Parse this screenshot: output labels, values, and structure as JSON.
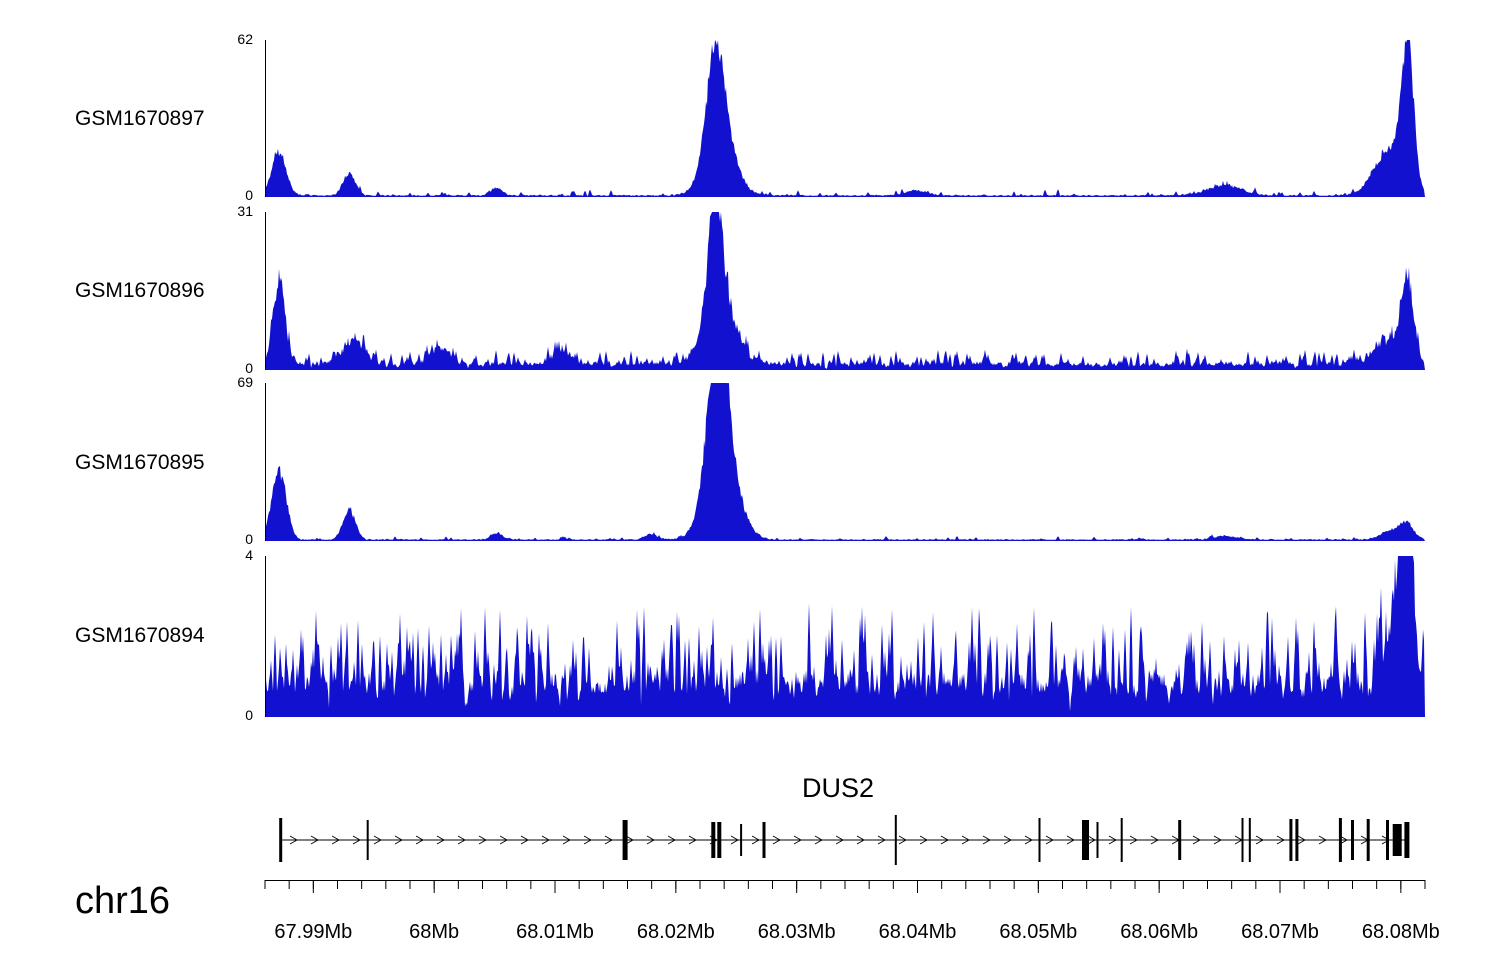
{
  "figure": {
    "background": "#ffffff",
    "signal_color": "#1111cf",
    "axis_color": "#000000"
  },
  "chart_data": [
    {
      "type": "area",
      "name": "GSM1670897",
      "ymax_label": "62",
      "ymin_label": "0",
      "ylim": [
        0,
        62
      ],
      "x_mb_range": [
        67.986,
        68.082
      ],
      "noise": {
        "base": 0.9,
        "spike": 2.2,
        "spike_prob": 0.12,
        "seed": 11
      },
      "peaks_mb": [
        {
          "mb": 67.9872,
          "value": 19,
          "sigma_mb": 0.0006
        },
        {
          "mb": 67.993,
          "value": 10,
          "sigma_mb": 0.0005
        },
        {
          "mb": 68.0052,
          "value": 3.5,
          "sigma_mb": 0.0005
        },
        {
          "mb": 68.0233,
          "value": 40,
          "sigma_mb": 0.0007
        },
        {
          "mb": 68.0237,
          "value": 28,
          "sigma_mb": 0.0012
        },
        {
          "mb": 68.04,
          "value": 2.5,
          "sigma_mb": 0.0008
        },
        {
          "mb": 68.0655,
          "value": 4.5,
          "sigma_mb": 0.0015
        },
        {
          "mb": 68.079,
          "value": 20,
          "sigma_mb": 0.0012
        },
        {
          "mb": 68.0806,
          "value": 62,
          "sigma_mb": 0.0005
        }
      ]
    },
    {
      "type": "area",
      "name": "GSM1670896",
      "ymax_label": "31",
      "ymin_label": "0",
      "ylim": [
        0,
        31
      ],
      "x_mb_range": [
        67.986,
        68.082
      ],
      "noise": {
        "base": 1.6,
        "spike": 2.8,
        "spike_prob": 0.35,
        "seed": 22
      },
      "peaks_mb": [
        {
          "mb": 67.9872,
          "value": 19,
          "sigma_mb": 0.0005
        },
        {
          "mb": 67.9934,
          "value": 5.5,
          "sigma_mb": 0.0009
        },
        {
          "mb": 68.0005,
          "value": 4,
          "sigma_mb": 0.0008
        },
        {
          "mb": 68.0105,
          "value": 3,
          "sigma_mb": 0.0008
        },
        {
          "mb": 68.0233,
          "value": 25,
          "sigma_mb": 0.0006
        },
        {
          "mb": 68.0237,
          "value": 13,
          "sigma_mb": 0.0013
        },
        {
          "mb": 68.079,
          "value": 6,
          "sigma_mb": 0.0012
        },
        {
          "mb": 68.0806,
          "value": 17,
          "sigma_mb": 0.0005
        }
      ]
    },
    {
      "type": "area",
      "name": "GSM1670895",
      "ymax_label": "69",
      "ymin_label": "0",
      "ylim": [
        0,
        69
      ],
      "x_mb_range": [
        67.986,
        68.082
      ],
      "noise": {
        "base": 0.9,
        "spike": 1.4,
        "spike_prob": 0.1,
        "seed": 33
      },
      "peaks_mb": [
        {
          "mb": 67.9872,
          "value": 33,
          "sigma_mb": 0.0006
        },
        {
          "mb": 67.993,
          "value": 15,
          "sigma_mb": 0.0005
        },
        {
          "mb": 68.0052,
          "value": 3.5,
          "sigma_mb": 0.0005
        },
        {
          "mb": 68.018,
          "value": 2.5,
          "sigma_mb": 0.0006
        },
        {
          "mb": 68.0235,
          "value": 69,
          "sigma_mb": 0.0008
        },
        {
          "mb": 68.0239,
          "value": 38,
          "sigma_mb": 0.0013
        },
        {
          "mb": 68.0655,
          "value": 2,
          "sigma_mb": 0.001
        },
        {
          "mb": 68.0795,
          "value": 5,
          "sigma_mb": 0.001
        },
        {
          "mb": 68.0806,
          "value": 6,
          "sigma_mb": 0.0005
        }
      ]
    },
    {
      "type": "area",
      "name": "GSM1670894",
      "ymax_label": "4",
      "ymin_label": "0",
      "ylim": [
        0,
        4
      ],
      "x_mb_range": [
        67.986,
        68.082
      ],
      "noise": {
        "base": 1.1,
        "spike": 1.9,
        "spike_prob": 0.45,
        "seed": 44
      },
      "peaks_mb": [
        {
          "mb": 68.08,
          "value": 3.0,
          "sigma_mb": 0.0009
        },
        {
          "mb": 68.0806,
          "value": 4.0,
          "sigma_mb": 0.0004
        }
      ]
    }
  ],
  "gene": {
    "name": "DUS2",
    "strand": "forward",
    "span_mb": [
      67.9872,
      68.0806
    ],
    "exons": [
      {
        "mb": 67.9873,
        "w": 3,
        "h": 44
      },
      {
        "mb": 67.9945,
        "w": 2,
        "h": 40
      },
      {
        "mb": 68.0158,
        "w": 5,
        "h": 40
      },
      {
        "mb": 68.0231,
        "w": 4,
        "h": 36
      },
      {
        "mb": 68.0236,
        "w": 4,
        "h": 36
      },
      {
        "mb": 68.0254,
        "w": 2,
        "h": 32
      },
      {
        "mb": 68.0273,
        "w": 3,
        "h": 36
      },
      {
        "mb": 68.0382,
        "w": 2,
        "h": 50
      },
      {
        "mb": 68.0501,
        "w": 2,
        "h": 44
      },
      {
        "mb": 68.0539,
        "w": 7,
        "h": 40
      },
      {
        "mb": 68.0549,
        "w": 2,
        "h": 36
      },
      {
        "mb": 68.0569,
        "w": 2,
        "h": 44
      },
      {
        "mb": 68.0617,
        "w": 3,
        "h": 40
      },
      {
        "mb": 68.0669,
        "w": 2,
        "h": 44
      },
      {
        "mb": 68.0675,
        "w": 2,
        "h": 44
      },
      {
        "mb": 68.0709,
        "w": 3,
        "h": 42
      },
      {
        "mb": 68.0714,
        "w": 3,
        "h": 42
      },
      {
        "mb": 68.075,
        "w": 3,
        "h": 44
      },
      {
        "mb": 68.076,
        "w": 3,
        "h": 40
      },
      {
        "mb": 68.0773,
        "w": 3,
        "h": 42
      },
      {
        "mb": 68.0789,
        "w": 3,
        "h": 40
      },
      {
        "mb": 68.0797,
        "w": 9,
        "h": 32
      },
      {
        "mb": 68.0805,
        "w": 5,
        "h": 36
      }
    ]
  },
  "axis": {
    "chrom": "chr16",
    "unit": "Mb",
    "range_mb": [
      67.986,
      68.082
    ],
    "minor_tick_interval_mb": 0.002,
    "major_ticks": [
      {
        "mb": 67.99,
        "label": "67.99Mb"
      },
      {
        "mb": 68.0,
        "label": "68Mb"
      },
      {
        "mb": 68.01,
        "label": "68.01Mb"
      },
      {
        "mb": 68.02,
        "label": "68.02Mb"
      },
      {
        "mb": 68.03,
        "label": "68.03Mb"
      },
      {
        "mb": 68.04,
        "label": "68.04Mb"
      },
      {
        "mb": 68.05,
        "label": "68.05Mb"
      },
      {
        "mb": 68.06,
        "label": "68.06Mb"
      },
      {
        "mb": 68.07,
        "label": "68.07Mb"
      },
      {
        "mb": 68.08,
        "label": "68.08Mb"
      }
    ]
  }
}
